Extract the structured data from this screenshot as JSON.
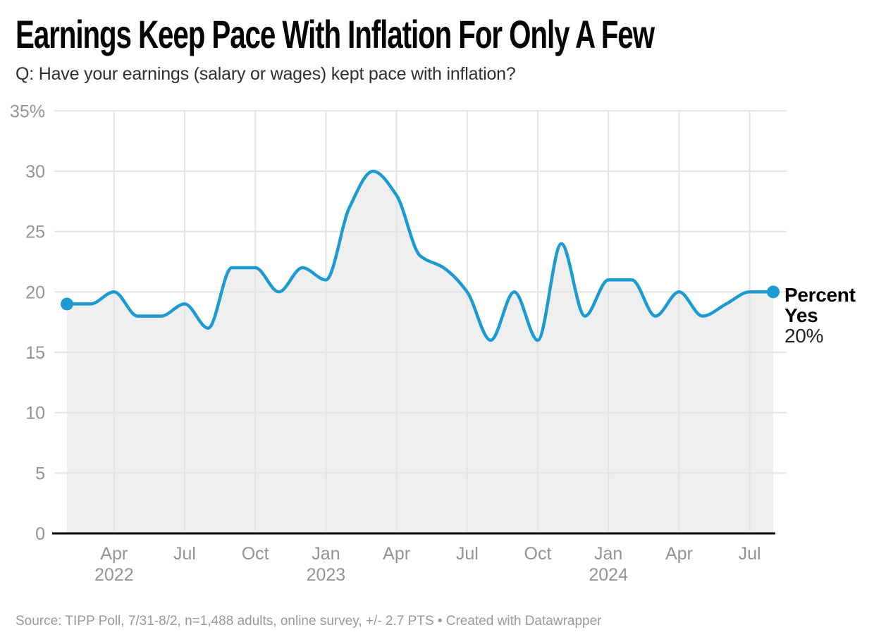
{
  "header": {
    "title": "Earnings Keep Pace With Inflation For Only A Few",
    "subtitle": "Q: Have your earnings (salary or wages) kept pace with inflation?"
  },
  "chart_data": {
    "type": "area",
    "title": "Earnings Keep Pace With Inflation For Only A Few",
    "xlabel": "",
    "ylabel": "",
    "x": [
      "Feb 2022",
      "Mar 2022",
      "Apr 2022",
      "May 2022",
      "Jun 2022",
      "Jul 2022",
      "Aug 2022",
      "Sep 2022",
      "Oct 2022",
      "Nov 2022",
      "Dec 2022",
      "Jan 2023",
      "Feb 2023",
      "Mar 2023",
      "Apr 2023",
      "May 2023",
      "Jun 2023",
      "Jul 2023",
      "Aug 2023",
      "Sep 2023",
      "Oct 2023",
      "Nov 2023",
      "Dec 2023",
      "Jan 2024",
      "Feb 2024",
      "Mar 2024",
      "Apr 2024",
      "May 2024",
      "Jun 2024",
      "Jul 2024",
      "Aug 2024"
    ],
    "series": [
      {
        "name": "Percent Yes",
        "values": [
          19,
          19,
          20,
          18,
          18,
          19,
          17,
          22,
          22,
          20,
          22,
          21,
          27,
          30,
          28,
          23,
          22,
          20,
          16,
          20,
          16,
          24,
          18,
          21,
          21,
          18,
          20,
          18,
          19,
          20,
          20
        ]
      }
    ],
    "ylim": [
      0,
      35
    ],
    "yticks": [
      0,
      5,
      10,
      15,
      20,
      25,
      30,
      35
    ],
    "ytick_top_label": "35%",
    "xticks": [
      {
        "index": 2,
        "label": "Apr",
        "year": "2022"
      },
      {
        "index": 5,
        "label": "Jul"
      },
      {
        "index": 8,
        "label": "Oct"
      },
      {
        "index": 11,
        "label": "Jan",
        "year": "2023"
      },
      {
        "index": 14,
        "label": "Apr"
      },
      {
        "index": 17,
        "label": "Jul"
      },
      {
        "index": 20,
        "label": "Oct"
      },
      {
        "index": 23,
        "label": "Jan",
        "year": "2024"
      },
      {
        "index": 26,
        "label": "Apr"
      },
      {
        "index": 29,
        "label": "Jul"
      }
    ],
    "grid": true,
    "legend_position": "end-of-line-label",
    "colors": {
      "line": "#1c9bd2",
      "area_fill": "#efefef",
      "gridline": "#e4e4e4",
      "axis_line": "#0a0a0a",
      "tick_label": "#949494"
    },
    "end_label": {
      "line1": "Percent",
      "line2": "Yes",
      "value": "20%"
    },
    "markers": {
      "start_value": 19,
      "end_value": 20
    }
  },
  "footer": {
    "source": "Source: TIPP Poll, 7/31-8/2, n=1,488 adults, online survey, +/- 2.7 PTS • Created with Datawrapper"
  }
}
